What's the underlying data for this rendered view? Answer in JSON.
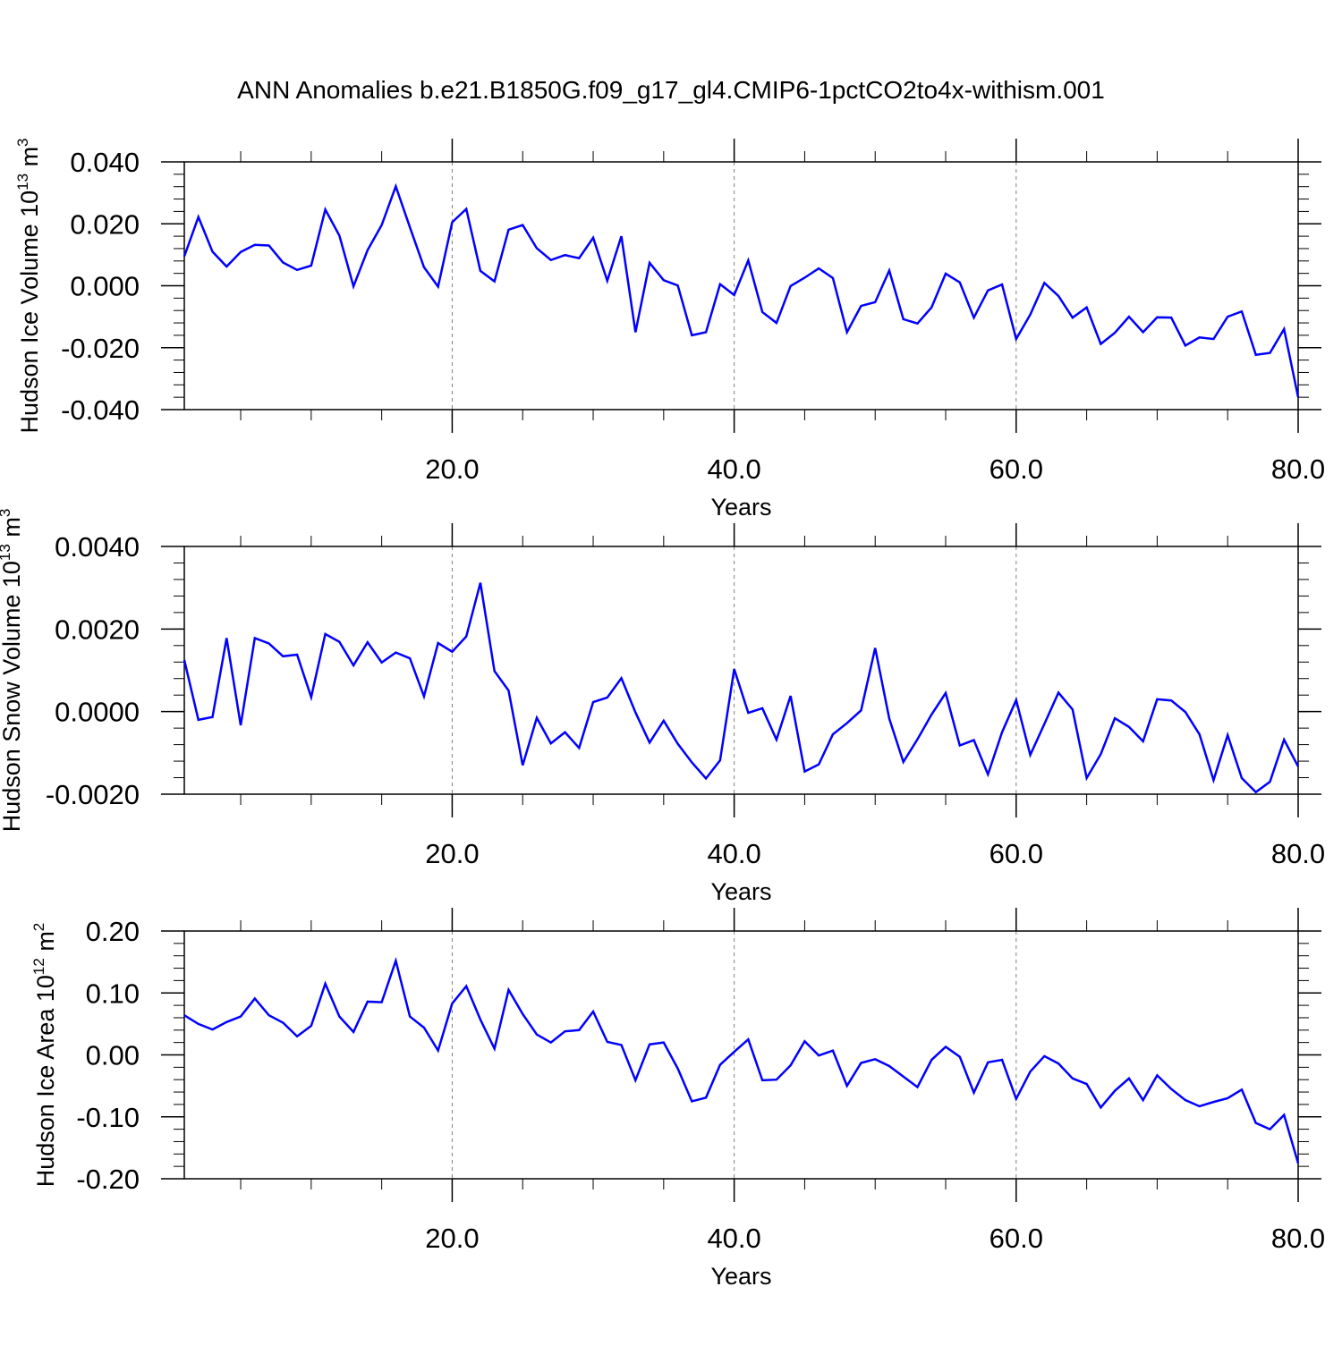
{
  "figure": {
    "title": "ANN Anomalies b.e21.B1850G.f09_g17_gl4.CMIP6-1pctCO2to4x-withism.001",
    "line_color": "#0000ff",
    "grid_color": "#808080"
  },
  "chart_data": [
    {
      "type": "line",
      "xlabel": "Years",
      "ylabel": {
        "main": "Hudson Ice Volume 10",
        "sup": "13",
        "unit": " m",
        "unit_sup": "3"
      },
      "xlim": [
        1,
        80
      ],
      "ylim": [
        -0.04,
        0.04
      ],
      "x_ticks": [
        20,
        40,
        60,
        80
      ],
      "x_tick_labels": [
        "20.0",
        "40.0",
        "60.0",
        "80.0"
      ],
      "y_ticks": [
        -0.04,
        -0.02,
        0.0,
        0.02,
        0.04
      ],
      "y_tick_labels": [
        "-0.040",
        "-0.020",
        "0.000",
        "0.020",
        "0.040"
      ],
      "y_minor_step": 0.004,
      "x_minor_step": 5,
      "grid": "dashed vertical at major x ticks",
      "x": [
        1,
        2,
        3,
        4,
        5,
        6,
        7,
        8,
        9,
        10,
        11,
        12,
        13,
        14,
        15,
        16,
        17,
        18,
        19,
        20,
        21,
        22,
        23,
        24,
        25,
        26,
        27,
        28,
        29,
        30,
        31,
        32,
        33,
        34,
        35,
        36,
        37,
        38,
        39,
        40,
        41,
        42,
        43,
        44,
        45,
        46,
        47,
        48,
        49,
        50,
        51,
        52,
        53,
        54,
        55,
        56,
        57,
        58,
        59,
        60,
        61,
        62,
        63,
        64,
        65,
        66,
        67,
        68,
        69,
        70,
        71,
        72,
        73,
        74,
        75,
        76,
        77,
        78,
        79,
        80
      ],
      "series": [
        {
          "values": [
            0.0095,
            0.0222,
            0.011,
            0.0062,
            0.0109,
            0.0132,
            0.013,
            0.0075,
            0.0051,
            0.0065,
            0.0246,
            0.0162,
            -0.0002,
            0.0115,
            0.0196,
            0.0321,
            0.0189,
            0.006,
            -0.0003,
            0.0205,
            0.0248,
            0.0048,
            0.0014,
            0.0181,
            0.0196,
            0.0121,
            0.0083,
            0.0099,
            0.0089,
            0.0155,
            0.0016,
            0.016,
            -0.015,
            0.0074,
            0.0018,
            0.0001,
            -0.016,
            -0.015,
            0.0005,
            -0.003,
            0.0082,
            -0.0085,
            -0.012,
            -0.0001,
            0.0026,
            0.0056,
            0.0025,
            -0.015,
            -0.0065,
            -0.0053,
            0.0049,
            -0.0108,
            -0.0122,
            -0.007,
            0.0039,
            0.0011,
            -0.0103,
            -0.0015,
            0.0004,
            -0.0172,
            -0.0093,
            0.0009,
            -0.0033,
            -0.0103,
            -0.007,
            -0.0188,
            -0.0152,
            -0.01,
            -0.015,
            -0.0102,
            -0.0103,
            -0.0193,
            -0.0167,
            -0.0172,
            -0.01,
            -0.0083,
            -0.0223,
            -0.0217,
            -0.014,
            -0.036
          ]
        }
      ]
    },
    {
      "type": "line",
      "xlabel": "Years",
      "ylabel": {
        "main": "Hudson Snow Volume 10",
        "sup": "13",
        "unit": " m",
        "unit_sup": "3"
      },
      "xlim": [
        1,
        80
      ],
      "ylim": [
        -0.002,
        0.004
      ],
      "x_ticks": [
        20,
        40,
        60,
        80
      ],
      "x_tick_labels": [
        "20.0",
        "40.0",
        "60.0",
        "80.0"
      ],
      "y_ticks": [
        -0.002,
        0.0,
        0.002,
        0.004
      ],
      "y_tick_labels": [
        "-0.0020",
        "0.0000",
        "0.0020",
        "0.0040"
      ],
      "y_minor_step": 0.0004,
      "x_minor_step": 5,
      "grid": "dashed vertical at major x ticks",
      "x": [
        1,
        2,
        3,
        4,
        5,
        6,
        7,
        8,
        9,
        10,
        11,
        12,
        13,
        14,
        15,
        16,
        17,
        18,
        19,
        20,
        21,
        22,
        23,
        24,
        25,
        26,
        27,
        28,
        29,
        30,
        31,
        32,
        33,
        34,
        35,
        36,
        37,
        38,
        39,
        40,
        41,
        42,
        43,
        44,
        45,
        46,
        47,
        48,
        49,
        50,
        51,
        52,
        53,
        54,
        55,
        56,
        57,
        58,
        59,
        60,
        61,
        62,
        63,
        64,
        65,
        66,
        67,
        68,
        69,
        70,
        71,
        72,
        73,
        74,
        75,
        76,
        77,
        78,
        79,
        80
      ],
      "series": [
        {
          "values": [
            0.00125,
            -0.0002,
            -0.00013,
            0.00178,
            -0.00033,
            0.00178,
            0.00165,
            0.00134,
            0.00138,
            0.00035,
            0.00188,
            0.00169,
            0.00112,
            0.00168,
            0.00119,
            0.00143,
            0.00129,
            0.00037,
            0.00166,
            0.00145,
            0.00182,
            0.00312,
            0.00098,
            0.00051,
            -0.0013,
            -0.00015,
            -0.00077,
            -0.0005,
            -0.00088,
            0.00023,
            0.00034,
            0.00081,
            -2e-05,
            -0.00075,
            -0.00022,
            -0.00078,
            -0.00123,
            -0.00162,
            -0.00118,
            0.00103,
            -3e-05,
            8e-05,
            -0.00068,
            0.00038,
            -0.00145,
            -0.00128,
            -0.00055,
            -0.00028,
            3e-05,
            0.00154,
            -0.00017,
            -0.00122,
            -0.00067,
            -7e-05,
            0.00045,
            -0.00082,
            -0.00069,
            -0.00152,
            -0.0005,
            0.00028,
            -0.00105,
            -0.0003,
            0.00046,
            5e-05,
            -0.00161,
            -0.00103,
            -0.00016,
            -0.00037,
            -0.00072,
            0.0003,
            0.00027,
            -1e-05,
            -0.00055,
            -0.00166,
            -0.00057,
            -0.00161,
            -0.00195,
            -0.0017,
            -0.00068,
            -0.00133
          ]
        }
      ]
    },
    {
      "type": "line",
      "xlabel": "Years",
      "ylabel": {
        "main": "Hudson Ice Area 10",
        "sup": "12",
        "unit": " m",
        "unit_sup": "2"
      },
      "xlim": [
        1,
        80
      ],
      "ylim": [
        -0.2,
        0.2
      ],
      "x_ticks": [
        20,
        40,
        60,
        80
      ],
      "x_tick_labels": [
        "20.0",
        "40.0",
        "60.0",
        "80.0"
      ],
      "y_ticks": [
        -0.2,
        -0.1,
        0.0,
        0.1,
        0.2
      ],
      "y_tick_labels": [
        "-0.20",
        "-0.10",
        "0.00",
        "0.10",
        "0.20"
      ],
      "y_minor_step": 0.02,
      "x_minor_step": 5,
      "grid": "dashed vertical at major x ticks",
      "x": [
        1,
        2,
        3,
        4,
        5,
        6,
        7,
        8,
        9,
        10,
        11,
        12,
        13,
        14,
        15,
        16,
        17,
        18,
        19,
        20,
        21,
        22,
        23,
        24,
        25,
        26,
        27,
        28,
        29,
        30,
        31,
        32,
        33,
        34,
        35,
        36,
        37,
        38,
        39,
        40,
        41,
        42,
        43,
        44,
        45,
        46,
        47,
        48,
        49,
        50,
        51,
        52,
        53,
        54,
        55,
        56,
        57,
        58,
        59,
        60,
        61,
        62,
        63,
        64,
        65,
        66,
        67,
        68,
        69,
        70,
        71,
        72,
        73,
        74,
        75,
        76,
        77,
        78,
        79,
        80
      ],
      "series": [
        {
          "values": [
            0.064,
            0.05,
            0.041,
            0.053,
            0.062,
            0.091,
            0.064,
            0.052,
            0.03,
            0.047,
            0.115,
            0.062,
            0.037,
            0.086,
            0.085,
            0.152,
            0.062,
            0.044,
            0.007,
            0.083,
            0.111,
            0.057,
            0.01,
            0.105,
            0.066,
            0.033,
            0.02,
            0.038,
            0.04,
            0.07,
            0.021,
            0.016,
            -0.041,
            0.017,
            0.02,
            -0.022,
            -0.075,
            -0.069,
            -0.016,
            0.005,
            0.025,
            -0.041,
            -0.04,
            -0.017,
            0.022,
            -0.001,
            0.007,
            -0.05,
            -0.013,
            -0.007,
            -0.018,
            -0.035,
            -0.052,
            -0.008,
            0.013,
            -0.003,
            -0.061,
            -0.012,
            -0.008,
            -0.071,
            -0.027,
            -0.002,
            -0.014,
            -0.038,
            -0.047,
            -0.085,
            -0.058,
            -0.038,
            -0.073,
            -0.033,
            -0.055,
            -0.073,
            -0.083,
            -0.076,
            -0.07,
            -0.056,
            -0.11,
            -0.12,
            -0.097,
            -0.175
          ]
        }
      ]
    }
  ]
}
